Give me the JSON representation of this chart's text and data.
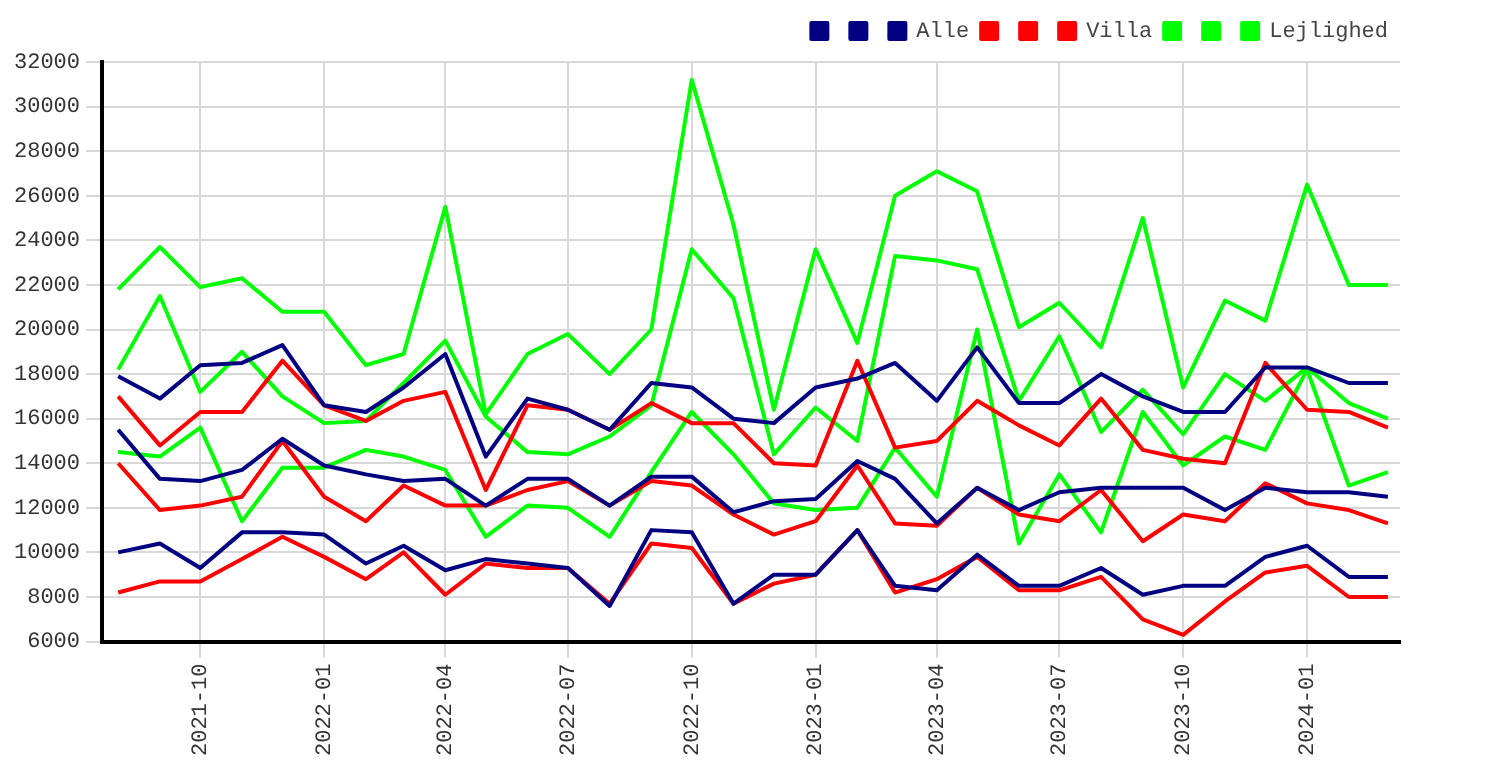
{
  "chart_data": {
    "type": "line",
    "x": [
      "2021-08",
      "2021-09",
      "2021-10",
      "2021-11",
      "2021-12",
      "2022-01",
      "2022-02",
      "2022-03",
      "2022-04",
      "2022-05",
      "2022-06",
      "2022-07",
      "2022-08",
      "2022-09",
      "2022-10",
      "2022-11",
      "2022-12",
      "2023-01",
      "2023-02",
      "2023-03",
      "2023-04",
      "2023-05",
      "2023-06",
      "2023-07",
      "2023-08",
      "2023-09",
      "2023-10",
      "2023-11",
      "2023-12",
      "2024-01",
      "2024-02",
      "2024-03"
    ],
    "series": [
      {
        "color": "#000080",
        "values": [
          17900,
          16900,
          18400,
          18500,
          19300,
          16600,
          16300,
          17400,
          18900,
          14300,
          16900,
          16400,
          15500,
          17600,
          17400,
          16000,
          15800,
          17400,
          17800,
          18500,
          16800,
          19200,
          16700,
          16700,
          18000,
          17000,
          16300,
          16300,
          18300,
          18300,
          17600,
          17600
        ]
      },
      {
        "color": "#000080",
        "values": [
          15500,
          13300,
          13200,
          13700,
          15100,
          13900,
          13500,
          13200,
          13300,
          12100,
          13300,
          13300,
          12100,
          13400,
          13400,
          11800,
          12300,
          12400,
          14100,
          13300,
          11300,
          12900,
          11900,
          12700,
          12900,
          12900,
          12900,
          11900,
          12900,
          12700,
          12700,
          12500
        ]
      },
      {
        "name": "Alle",
        "color": "#000080",
        "values": [
          10000,
          10400,
          9300,
          10900,
          10900,
          10800,
          9500,
          10300,
          9200,
          9700,
          9500,
          9300,
          7600,
          11000,
          10900,
          7700,
          9000,
          9000,
          11000,
          8500,
          8300,
          9900,
          8500,
          8500,
          9300,
          8100,
          8500,
          8500,
          9800,
          10300,
          8900,
          8900
        ]
      },
      {
        "color": "#ff0000",
        "values": [
          17000,
          14800,
          16300,
          16300,
          18600,
          16600,
          15900,
          16800,
          17200,
          12800,
          16600,
          16400,
          15500,
          16700,
          15800,
          15800,
          14000,
          13900,
          18600,
          14700,
          15000,
          16800,
          15700,
          14800,
          16900,
          14600,
          14200,
          14000,
          18500,
          16400,
          16300,
          15600
        ]
      },
      {
        "color": "#ff0000",
        "values": [
          14000,
          11900,
          12100,
          12500,
          15000,
          12500,
          11400,
          13000,
          12100,
          12100,
          12800,
          13200,
          12100,
          13200,
          13000,
          11700,
          10800,
          11400,
          13900,
          11300,
          11200,
          12900,
          11700,
          11400,
          12800,
          10500,
          11700,
          11400,
          13100,
          12200,
          11900,
          11300
        ]
      },
      {
        "name": "Villa",
        "color": "#ff0000",
        "values": [
          8200,
          8700,
          8700,
          9700,
          10700,
          9800,
          8800,
          10000,
          8100,
          9500,
          9300,
          9300,
          7700,
          10400,
          10200,
          7700,
          8600,
          9000,
          11000,
          8200,
          8800,
          9800,
          8300,
          8300,
          8900,
          7000,
          6300,
          7800,
          9100,
          9400,
          8000,
          8000
        ]
      },
      {
        "color": "#00ff00",
        "values": [
          21800,
          23700,
          21900,
          22300,
          20800,
          20800,
          18400,
          18900,
          25500,
          16200,
          18900,
          19800,
          18000,
          20000,
          31200,
          24700,
          16400,
          23600,
          19400,
          26000,
          27100,
          26200,
          20100,
          21200,
          19200,
          25000,
          17400,
          21300,
          20400,
          26500,
          22000,
          22000
        ]
      },
      {
        "color": "#00ff00",
        "values": [
          18200,
          21500,
          17200,
          19000,
          17000,
          15800,
          15900,
          17600,
          19500,
          16100,
          14500,
          14400,
          15200,
          16600,
          23600,
          21400,
          14400,
          16500,
          15000,
          23300,
          23100,
          22700,
          16800,
          19700,
          15400,
          17300,
          15300,
          18000,
          16800,
          18300,
          16700,
          16000
        ]
      },
      {
        "name": "Lejlighed",
        "color": "#00ff00",
        "values": [
          14500,
          14300,
          15600,
          11400,
          13800,
          13800,
          14600,
          14300,
          13700,
          10700,
          12100,
          12000,
          10700,
          13600,
          16300,
          14400,
          12200,
          11900,
          12000,
          14700,
          12500,
          20000,
          10400,
          13500,
          10900,
          16300,
          13900,
          15200,
          14600,
          18200,
          13000,
          13600
        ]
      }
    ],
    "xlim": [
      "2021-07-20",
      "2024-03-10"
    ],
    "xticks": [
      "2021-10",
      "2022-01",
      "2022-04",
      "2022-07",
      "2022-10",
      "2023-01",
      "2023-04",
      "2023-07",
      "2023-10",
      "2024-01"
    ],
    "ylim": [
      6000,
      32000
    ],
    "yticks": [
      6000,
      8000,
      10000,
      12000,
      14000,
      16000,
      18000,
      20000,
      22000,
      24000,
      26000,
      28000,
      30000,
      32000
    ],
    "grid": true,
    "legend": "top right",
    "marker": "none",
    "line_style": "solid"
  }
}
